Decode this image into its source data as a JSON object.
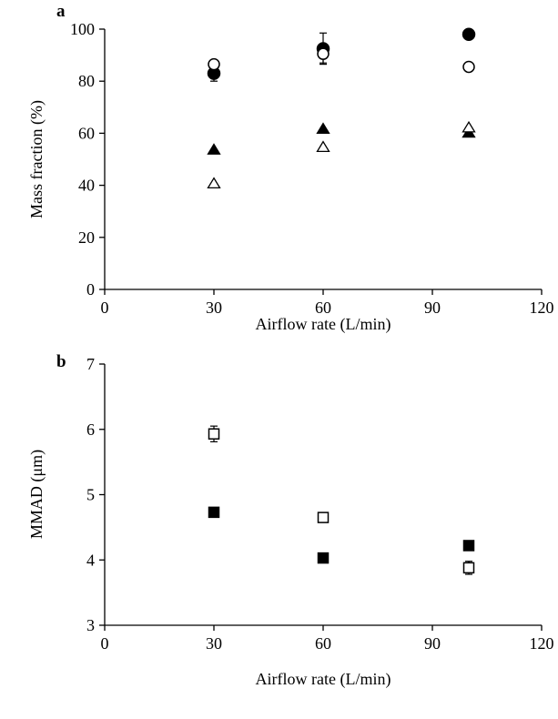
{
  "chart_data": [
    {
      "type": "scatter",
      "panel_label": "a",
      "title": "",
      "xlabel": "Airflow rate (L/min)",
      "ylabel": "Mass fraction (%)",
      "xlim": [
        0,
        120
      ],
      "ylim": [
        0,
        100
      ],
      "xticks": [
        "0",
        "30",
        "60",
        "90",
        "120"
      ],
      "yticks": [
        "0",
        "20",
        "40",
        "60",
        "80",
        "100"
      ],
      "grid": false,
      "legend": "none",
      "series": [
        {
          "marker": "filled-circle",
          "x": [
            30,
            60,
            100
          ],
          "y": [
            83,
            92.5,
            98
          ],
          "err": [
            3,
            6,
            0
          ]
        },
        {
          "marker": "open-circle",
          "x": [
            30,
            60,
            100
          ],
          "y": [
            86.5,
            90.5,
            85.5
          ],
          "err": [
            0,
            3.5,
            0
          ]
        },
        {
          "marker": "filled-triangle",
          "x": [
            30,
            60,
            100
          ],
          "y": [
            53.5,
            61.5,
            60
          ],
          "err": [
            0,
            0,
            0
          ]
        },
        {
          "marker": "open-triangle",
          "x": [
            30,
            60,
            100
          ],
          "y": [
            40.5,
            54.5,
            62
          ],
          "err": [
            0,
            0,
            0
          ]
        }
      ]
    },
    {
      "type": "scatter",
      "panel_label": "b",
      "title": "",
      "xlabel": "Airflow rate (L/min)",
      "ylabel": "MMAD (μm)",
      "xlim": [
        0,
        120
      ],
      "ylim": [
        3,
        7
      ],
      "xticks": [
        "0",
        "30",
        "60",
        "90",
        "120"
      ],
      "yticks": [
        "3",
        "4",
        "5",
        "6",
        "7"
      ],
      "grid": false,
      "legend": "none",
      "series": [
        {
          "marker": "filled-square",
          "x": [
            30,
            60,
            100
          ],
          "y": [
            4.73,
            4.03,
            4.22
          ],
          "err": [
            0,
            0,
            0
          ]
        },
        {
          "marker": "open-square",
          "x": [
            30,
            60,
            100
          ],
          "y": [
            5.93,
            4.65,
            3.88
          ],
          "err": [
            0.12,
            0,
            0.1
          ]
        }
      ]
    }
  ]
}
